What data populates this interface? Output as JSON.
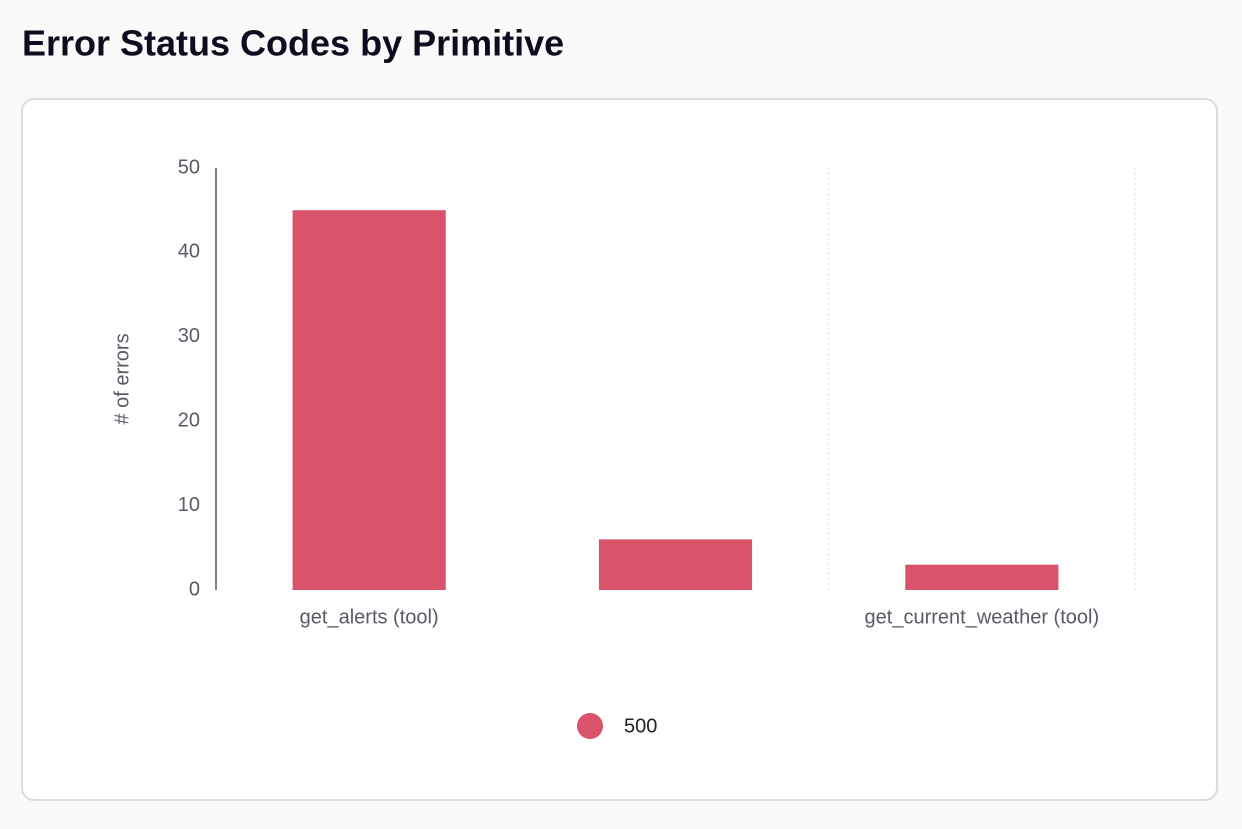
{
  "chart_data": {
    "type": "bar",
    "title": "Error Status Codes by Primitive",
    "y_label": "# of errors",
    "categories": [
      "get_alerts (tool)",
      null,
      "get_current_weather (tool)"
    ],
    "series": [
      {
        "name": "500",
        "color": "#d9546a",
        "values": [
          45,
          6,
          3
        ]
      }
    ],
    "ylim": [
      0,
      50
    ],
    "yticks": [
      0,
      10,
      20,
      30,
      40,
      50
    ],
    "legend": "bottom"
  }
}
